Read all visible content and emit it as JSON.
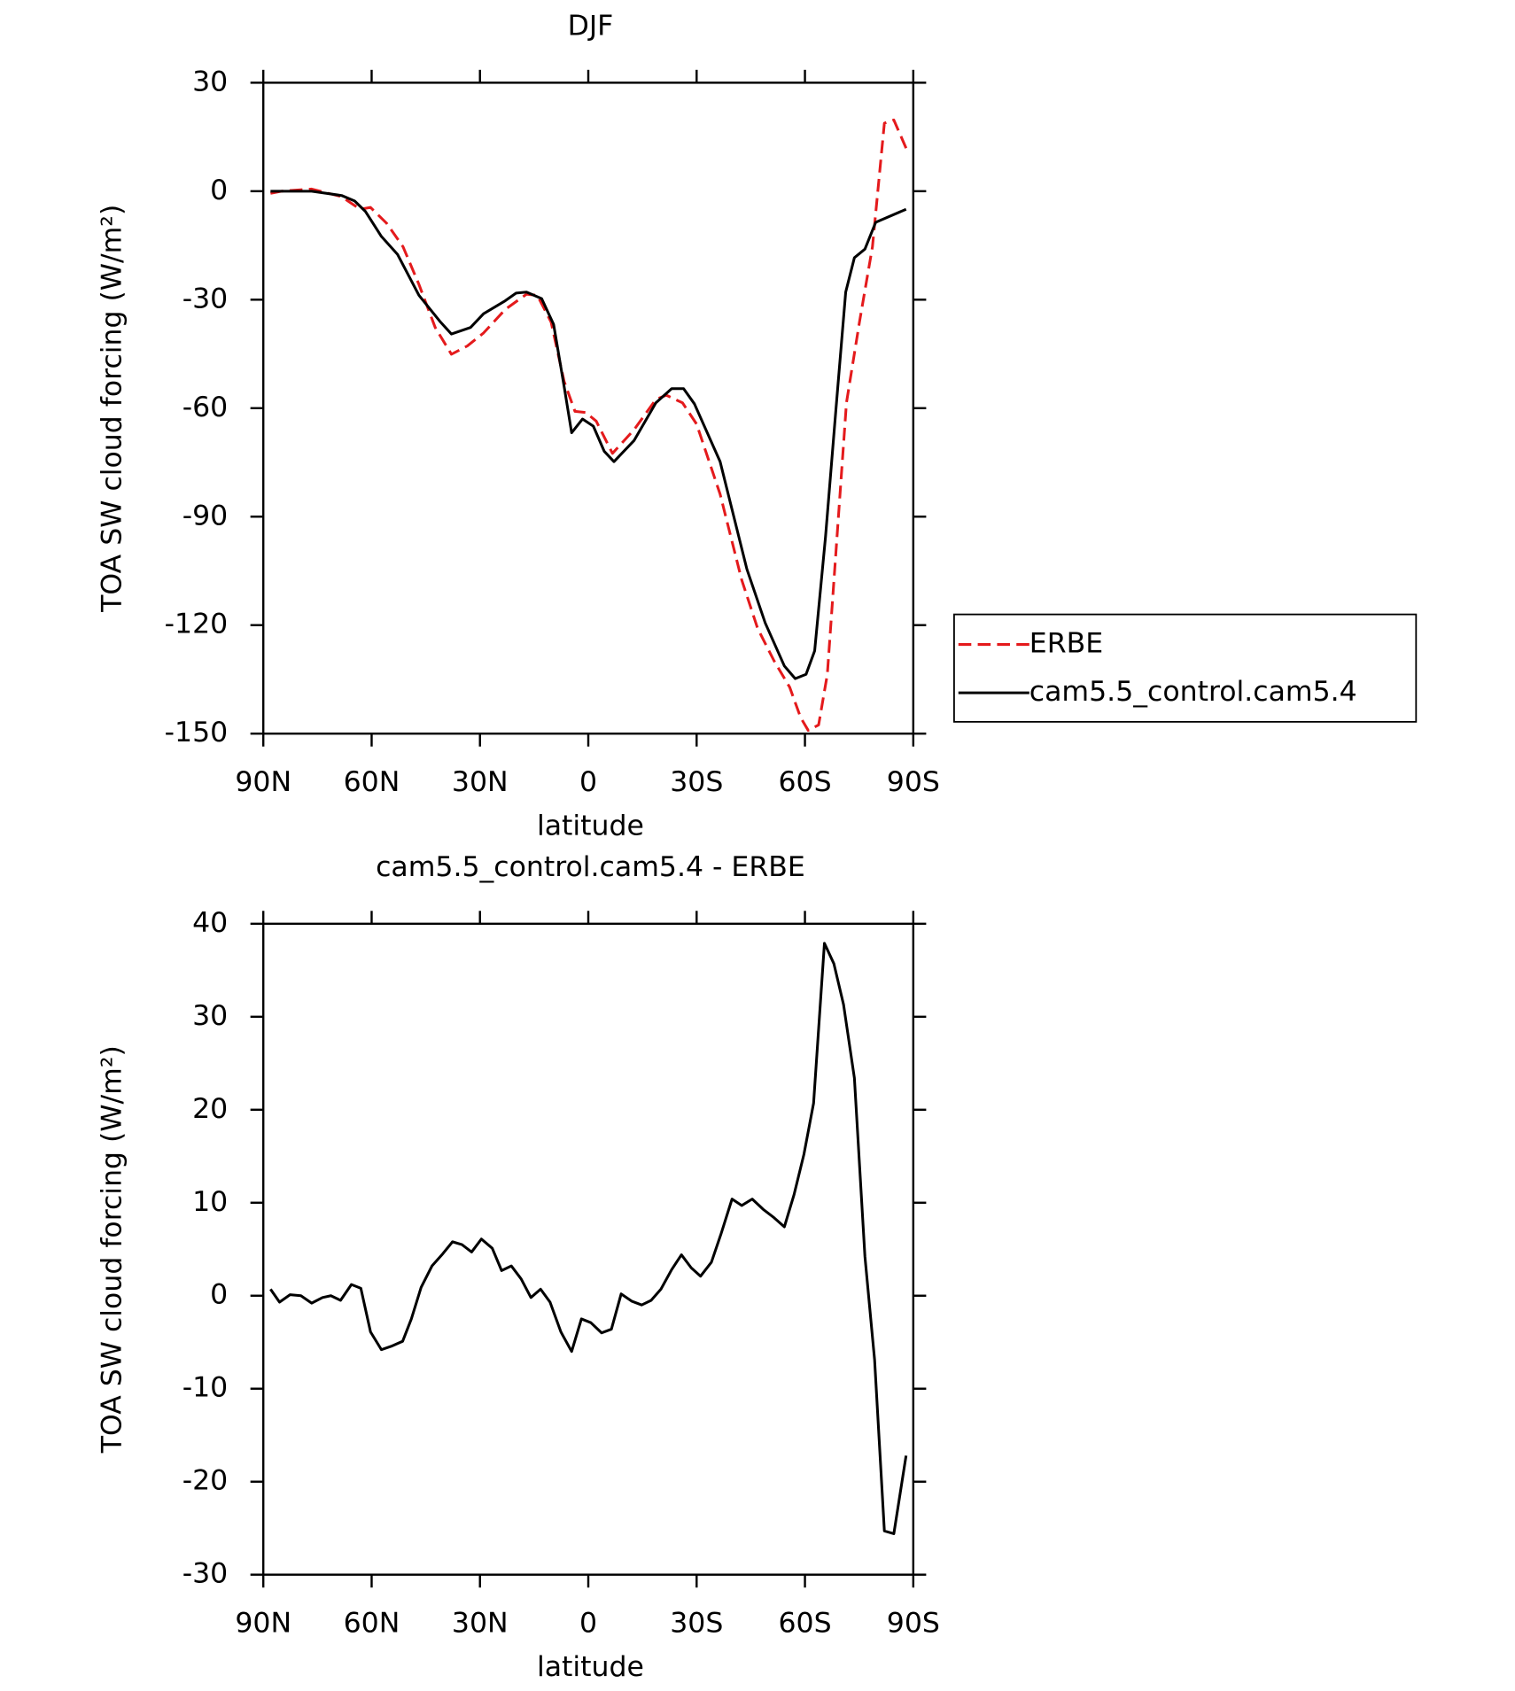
{
  "chart_data": [
    {
      "type": "line",
      "title": "DJF",
      "xlabel": "latitude",
      "ylabel": "TOA SW cloud forcing (W/m²)",
      "xlim": [
        90,
        -90
      ],
      "xticks": [
        {
          "value": 90,
          "label": "90N"
        },
        {
          "value": 60,
          "label": "60N"
        },
        {
          "value": 30,
          "label": "30N"
        },
        0,
        {
          "value": -30,
          "label": "30S"
        },
        {
          "value": -60,
          "label": "60S"
        },
        {
          "value": -90,
          "label": "90S"
        }
      ],
      "ylim": [
        -150,
        30
      ],
      "yticks": [
        -150,
        -120,
        -90,
        -60,
        -30,
        0,
        30
      ],
      "legend": "right",
      "series": [
        {
          "name": "ERBE",
          "color": "#e41a1c",
          "dash": true,
          "x": [
            88,
            85,
            76.6,
            68.3,
            63.2,
            60.3,
            55.8,
            51.3,
            46.9,
            42.4,
            37.9,
            33.5,
            29,
            23,
            17.1,
            14.1,
            10.3,
            6.7,
            3.7,
            0.7,
            -2.2,
            -6.7,
            -12.7,
            -18.7,
            -21.6,
            -26.1,
            -30,
            -36.5,
            -42.5,
            -46.9,
            -51.4,
            -55.8,
            -58.8,
            -60.9,
            -63.8,
            -66.2,
            -71.5,
            -75.1,
            -78.7,
            -82,
            -84.6,
            -88
          ],
          "values": [
            -0.6,
            0,
            0.6,
            -1.5,
            -5,
            -4.5,
            -8.9,
            -15.4,
            -25.8,
            -37.7,
            -45.1,
            -42.8,
            -39.2,
            -32.7,
            -28.5,
            -28.8,
            -36.2,
            -52.6,
            -60.9,
            -61.2,
            -63.6,
            -72.5,
            -65.9,
            -57.6,
            -56.4,
            -58.5,
            -64.4,
            -83.8,
            -107.5,
            -120.9,
            -129.8,
            -137.2,
            -145.5,
            -149.1,
            -147.6,
            -133.6,
            -58.5,
            -36.2,
            -15.4,
            18.8,
            19.7,
            11.9
          ]
        },
        {
          "name": "cam5.5_control.cam5.4",
          "color": "#000000",
          "dash": false,
          "x": [
            88,
            76.6,
            68.3,
            64.7,
            61.7,
            57.3,
            52.8,
            46.9,
            40.9,
            37.9,
            32.6,
            29,
            23,
            20,
            17.1,
            12.9,
            9.6,
            6.7,
            4.6,
            1.6,
            -1.4,
            -4.4,
            -7.1,
            -12.7,
            -18.7,
            -23.1,
            -26.4,
            -29.4,
            -36.5,
            -43.9,
            -49,
            -54.3,
            -57.3,
            -60.3,
            -62.7,
            -65.7,
            -68.6,
            -71.3,
            -73.7,
            -76.6,
            -79.6,
            -88
          ],
          "values": [
            0,
            0,
            -1.2,
            -2.7,
            -5.6,
            -12.5,
            -17.5,
            -28.8,
            -36.2,
            -39.5,
            -37.7,
            -33.9,
            -30.3,
            -28.2,
            -27.9,
            -29.7,
            -36.8,
            -54,
            -66.8,
            -63,
            -65,
            -71.9,
            -74.8,
            -68.9,
            -58.5,
            -54.6,
            -54.6,
            -58.8,
            -74.8,
            -104.5,
            -119.4,
            -131.3,
            -134.8,
            -133.6,
            -127.1,
            -95.6,
            -60,
            -27.9,
            -18.4,
            -16,
            -8.6,
            -5
          ]
        }
      ]
    },
    {
      "type": "line",
      "title": "cam5.5_control.cam5.4 - ERBE",
      "xlabel": "latitude",
      "ylabel": "TOA SW cloud forcing (W/m²)",
      "xlim": [
        90,
        -90
      ],
      "xticks": [
        {
          "value": 90,
          "label": "90N"
        },
        {
          "value": 60,
          "label": "60N"
        },
        {
          "value": 30,
          "label": "30N"
        },
        0,
        {
          "value": -30,
          "label": "30S"
        },
        {
          "value": -60,
          "label": "60S"
        },
        {
          "value": -90,
          "label": "90S"
        }
      ],
      "ylim": [
        -30,
        40
      ],
      "yticks": [
        -30,
        -20,
        -10,
        0,
        10,
        20,
        30,
        40
      ],
      "series": [
        {
          "color": "#000000",
          "dash": false,
          "x": [
            88,
            85.5,
            82.6,
            79.6,
            76.6,
            73.6,
            71.3,
            68.6,
            65.6,
            63,
            60.3,
            57.3,
            54.3,
            51.4,
            49,
            46.3,
            43.3,
            40.3,
            37.6,
            35,
            32.3,
            29.6,
            26.6,
            24,
            21.3,
            18.6,
            15.9,
            13.2,
            10.6,
            7.6,
            4.6,
            1.9,
            -0.7,
            -3.7,
            -6.4,
            -9.1,
            -12.1,
            -14.8,
            -17.4,
            -20.1,
            -23.1,
            -25.8,
            -28.5,
            -31.1,
            -34.1,
            -36.8,
            -39.8,
            -42.5,
            -45.4,
            -48.4,
            -51.4,
            -54.3,
            -57,
            -59.7,
            -62.4,
            -65.4,
            -68,
            -70.7,
            -73.7,
            -76.6,
            -79.3,
            -82,
            -84.6,
            -88
          ],
          "values": [
            0.7,
            -0.7,
            0.1,
            0,
            -0.8,
            -0.2,
            0,
            -0.5,
            1.2,
            0.8,
            -3.9,
            -5.8,
            -5.4,
            -4.9,
            -2.5,
            0.9,
            3.2,
            4.5,
            5.8,
            5.5,
            4.7,
            6.1,
            5.1,
            2.7,
            3.2,
            1.8,
            -0.2,
            0.7,
            -0.7,
            -3.9,
            -6,
            -2.5,
            -2.9,
            -4,
            -3.6,
            0.2,
            -0.6,
            -1,
            -0.5,
            0.7,
            2.8,
            4.4,
            3,
            2.1,
            3.6,
            6.7,
            10.4,
            9.7,
            10.4,
            9.3,
            8.4,
            7.4,
            10.9,
            15.2,
            20.7,
            37.9,
            35.7,
            31.3,
            23.4,
            4.2,
            -6.9,
            -25.3,
            -25.6,
            -17.2
          ]
        }
      ]
    }
  ]
}
